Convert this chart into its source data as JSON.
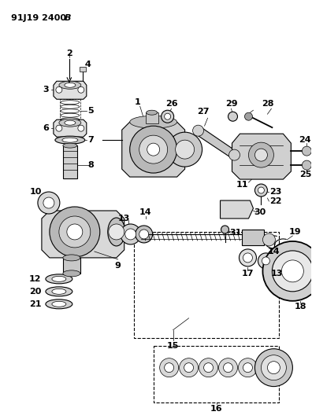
{
  "title_normal": "91J19 2400 ",
  "title_bold": "B",
  "background_color": "#ffffff",
  "line_color": "#000000",
  "figsize": [
    3.96,
    5.33
  ],
  "dpi": 100,
  "lw_thin": 0.5,
  "lw_med": 0.8,
  "lw_thick": 1.3
}
